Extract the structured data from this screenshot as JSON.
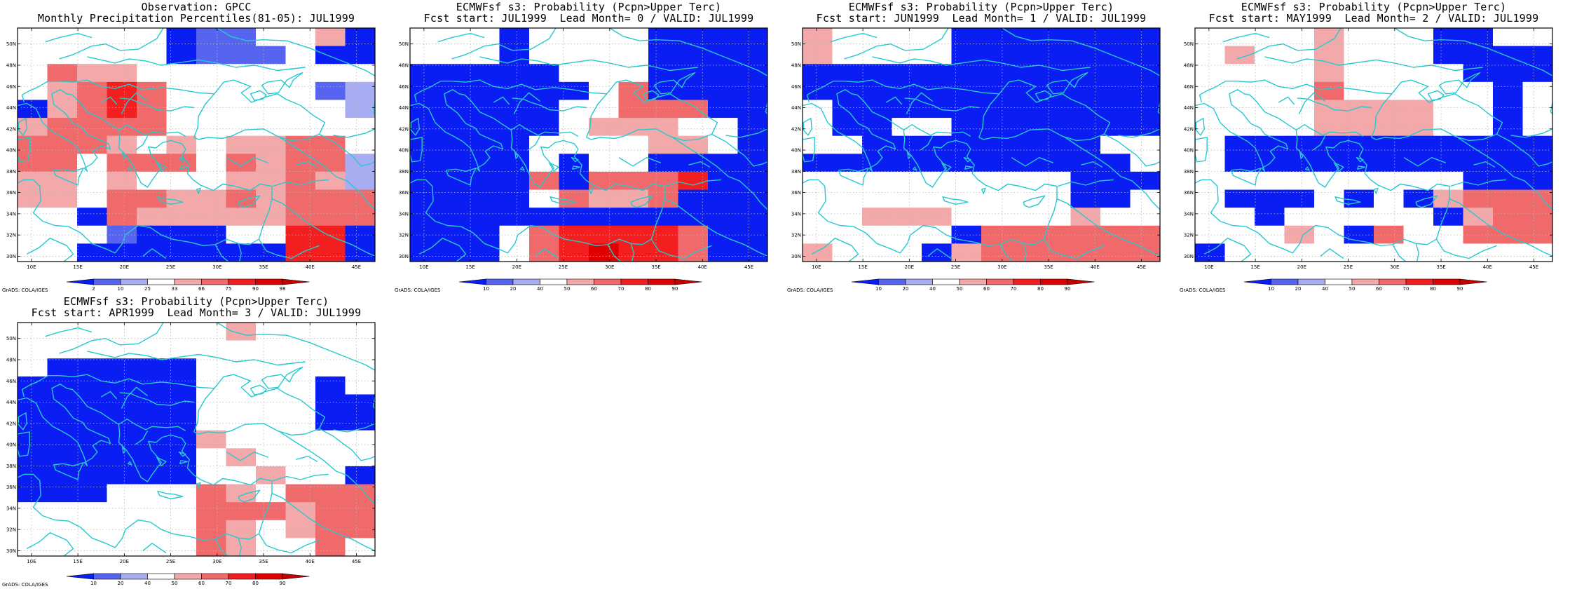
{
  "colors": {
    "coastline": "#26c9cf",
    "grid": "#b8b8b8",
    "frame": "#000000",
    "classes": [
      "#0a1df3",
      "#5664f0",
      "#a8adf3",
      "#ffffff",
      "#f3a8a9",
      "#f16a6b",
      "#f21e1f",
      "#e00000",
      "#c40000"
    ]
  },
  "axes": {
    "lon_labels": [
      "10E",
      "15E",
      "20E",
      "25E",
      "30E",
      "35E",
      "40E",
      "45E"
    ],
    "lon_values": [
      10,
      15,
      20,
      25,
      30,
      35,
      40,
      45
    ],
    "lat_labels": [
      "30N",
      "32N",
      "34N",
      "36N",
      "38N",
      "40N",
      "42N",
      "44N",
      "46N",
      "48N",
      "50N"
    ],
    "lat_values": [
      30,
      32,
      34,
      36,
      38,
      40,
      42,
      44,
      46,
      48,
      50
    ],
    "lon_range": [
      8.5,
      47
    ],
    "lat_range": [
      29.5,
      51.5
    ],
    "cell_size_deg": 2.5
  },
  "credit": "GrADS: COLA/IGES",
  "panels": [
    {
      "title_line1": "Observation: GPCC",
      "title_line2": "Monthly Precipitation Percentiles(81-05): JUL1999",
      "colorbar_labels": [
        "2",
        "10",
        "25",
        "33",
        "66",
        "75",
        "90",
        "98"
      ],
      "grid": [
        "333330113340",
        "333330111300",
        "354433333333",
        "345653333312",
        "045653333332",
        "455553333333",
        "555434344553",
        "553555354552",
        "443433344542",
        "443554454555",
        "330544444555",
        "333100033660",
        "330000000660"
      ]
    },
    {
      "title_line1": "ECMWFsf s3: Probability (Pcpn>Upper Terc)",
      "title_line2": "Fcst start: JUL1999  Lead Month= 0 / VALID: JUL1999",
      "colorbar_labels": [
        "10",
        "20",
        "40",
        "50",
        "60",
        "70",
        "80",
        "90"
      ],
      "grid": [
        "333033330000",
        "333033330000",
        "000003330000",
        "000000350000",
        "000003355500",
        "000003444330",
        "000033334430",
        "000030330000",
        "000050555600",
        "000035445000",
        "000000000000",
        "000356666500",
        "000356766500"
      ]
    },
    {
      "title_line1": "ECMWFsf s3: Probability (Pcpn>Upper Terc)",
      "title_line2": "Fcst start: JUN1999  Lead Month= 1 / VALID: JUL1999",
      "colorbar_labels": [
        "10",
        "20",
        "40",
        "50",
        "60",
        "70",
        "80",
        "90"
      ],
      "grid": [
        "433330000000",
        "433330000000",
        "000000000000",
        "000000000000",
        "300000000000",
        "300330000000",
        "330000000033",
        "000000000003",
        "333333333000",
        "333333333003",
        "334443333433",
        "333330555555",
        "433304555555"
      ]
    },
    {
      "title_line1": "ECMWFsf s3: Probability (Pcpn>Upper Terc)",
      "title_line2": "Fcst start: MAY1999  Lead Month= 2 / VALID: JUL1999",
      "colorbar_labels": [
        "10",
        "20",
        "40",
        "50",
        "60",
        "70",
        "80",
        "90"
      ],
      "grid": [
        "333343330033",
        "343343330000",
        "333343333000",
        "333353333303",
        "333344443303",
        "333344443303",
        "300000000000",
        "300000000000",
        "333333333000",
        "300030304555",
        "330333330455",
        "333430533555",
        "033333333333"
      ]
    },
    {
      "title_line1": "ECMWFsf s3: Probability (Pcpn>Upper Terc)",
      "title_line2": "Fcst start: APR1999  Lead Month= 3 / VALID: JUL1999",
      "colorbar_labels": [
        "10",
        "20",
        "40",
        "50",
        "60",
        "70",
        "80",
        "90"
      ],
      "grid": [
        "333333343333",
        "333333333333",
        "300000333333",
        "000000333303",
        "000000333300",
        "000000333300",
        "000000433333",
        "000000343333",
        "000000334330",
        "000333543555",
        "333333555455",
        "333333543455",
        "333333543353"
      ]
    }
  ]
}
